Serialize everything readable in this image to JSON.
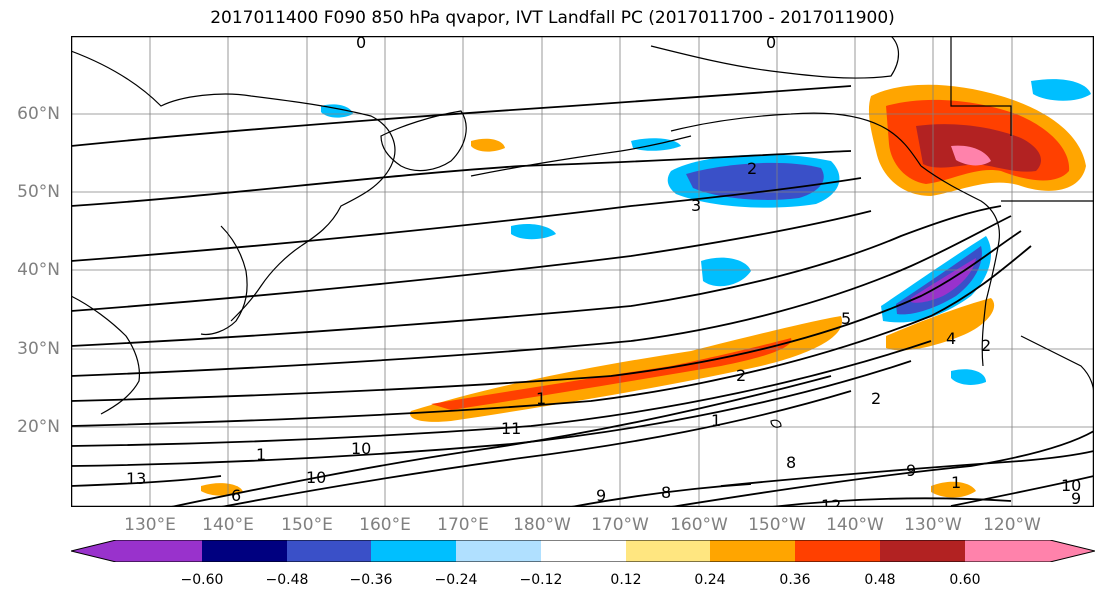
{
  "title": "2017011400 F090 850 hPa qvapor, IVT Landfall PC (2017011700 - 2017011900)",
  "lat_labels": [
    "60°N",
    "50°N",
    "40°N",
    "30°N",
    "20°N"
  ],
  "lon_labels": [
    "130°E",
    "140°E",
    "150°E",
    "160°E",
    "170°E",
    "180°W",
    "170°W",
    "160°W",
    "150°W",
    "140°W",
    "130°W",
    "120°W"
  ],
  "colorbar": {
    "ticks": [
      "−0.60",
      "−0.48",
      "−0.36",
      "−0.24",
      "−0.12",
      "0.12",
      "0.24",
      "0.36",
      "0.48",
      "0.60"
    ],
    "colors": [
      "#9932cc",
      "#000080",
      "#3a50c8",
      "#00bfff",
      "#b0e0ff",
      "#ffffff",
      "#ffe680",
      "#ffa500",
      "#ff4000",
      "#b22222",
      "#ff82ab"
    ]
  },
  "contour_labels": [
    "0",
    "0",
    "2",
    "3",
    "5",
    "2",
    "4",
    "2",
    "2",
    "1",
    "1",
    "10",
    "13",
    "9",
    "8",
    "8",
    "1",
    "12",
    "6",
    "10",
    "9",
    "11",
    "10",
    "9",
    "1"
  ]
}
